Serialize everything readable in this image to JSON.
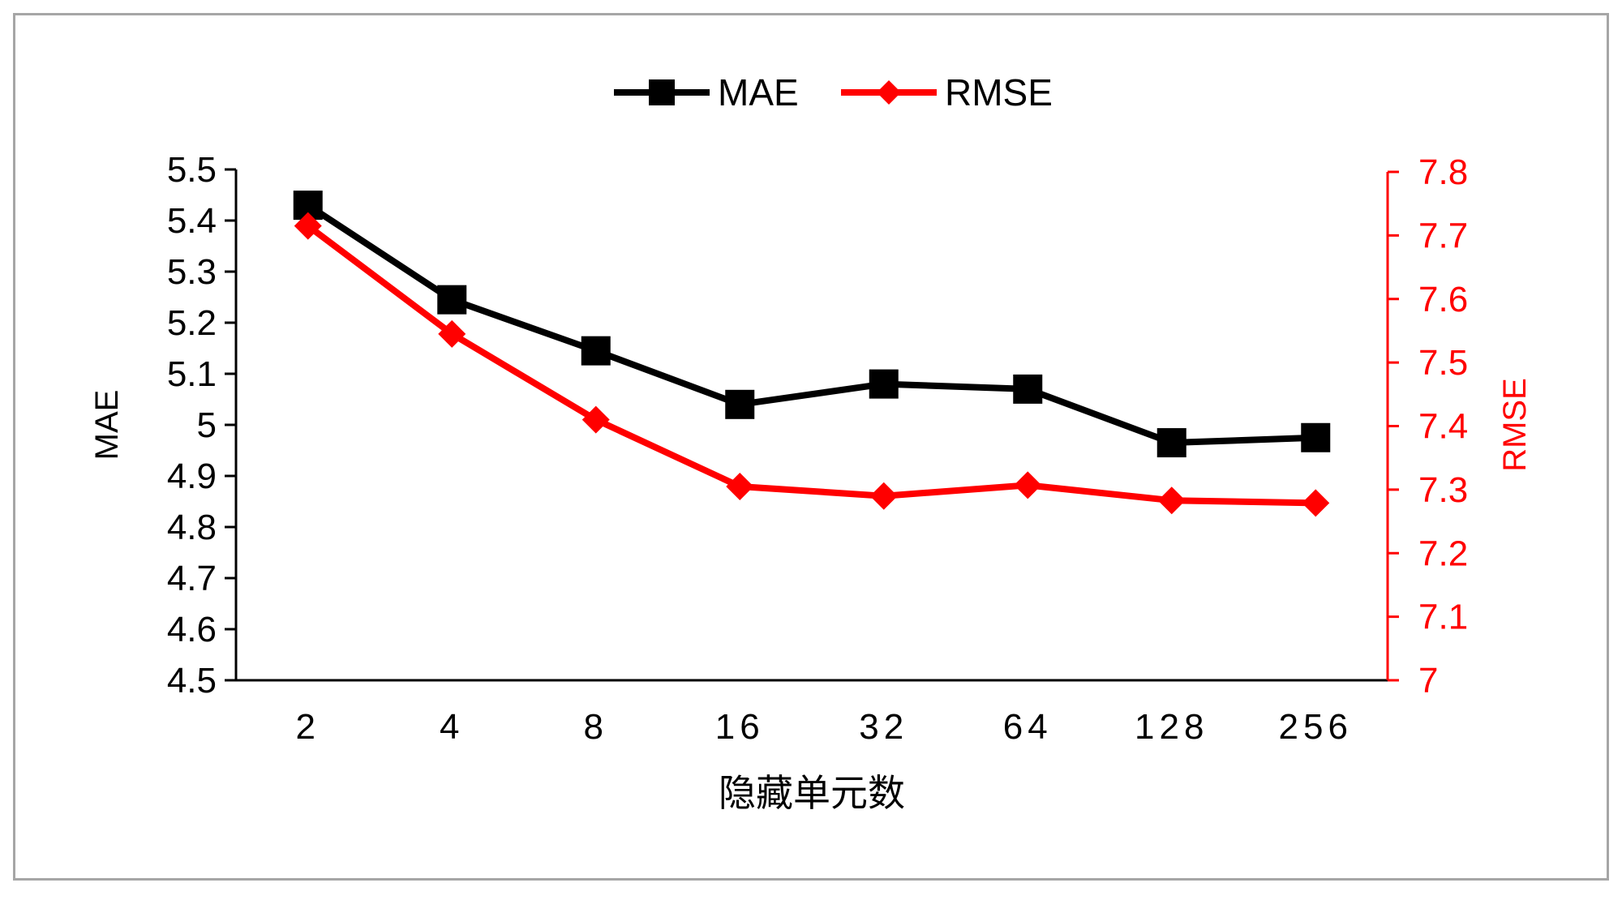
{
  "chart_data": {
    "type": "line",
    "xlabel": "隐藏单元数",
    "x_categories": [
      "2",
      "4",
      "8",
      "16",
      "32",
      "64",
      "128",
      "256"
    ],
    "left_axis": {
      "label": "MAE",
      "ylim": [
        4.5,
        5.5
      ],
      "step": 0.1,
      "tick_labels": [
        "4.5",
        "4.6",
        "4.7",
        "4.8",
        "4.9",
        "5",
        "5.1",
        "5.2",
        "5.3",
        "5.4",
        "5.5"
      ]
    },
    "right_axis": {
      "label": "RMSE",
      "ylim": [
        7.0,
        7.8
      ],
      "step": 0.1,
      "tick_labels": [
        "7",
        "7.1",
        "7.2",
        "7.3",
        "7.4",
        "7.5",
        "7.6",
        "7.7",
        "7.8"
      ]
    },
    "series": [
      {
        "name": "MAE",
        "axis": "left",
        "color": "#000000",
        "marker": "square",
        "values": [
          5.43,
          5.245,
          5.145,
          5.04,
          5.08,
          5.07,
          4.965,
          4.975
        ]
      },
      {
        "name": "RMSE",
        "axis": "right",
        "color": "#ff0000",
        "marker": "diamond",
        "values": [
          7.715,
          7.545,
          7.41,
          7.305,
          7.29,
          7.307,
          7.283,
          7.279
        ]
      }
    ],
    "legend_position": "top-center",
    "grid": false,
    "colors": {
      "left_axis": "#000000",
      "right_axis": "#ff0000",
      "frame": "#a6a6a6"
    }
  }
}
